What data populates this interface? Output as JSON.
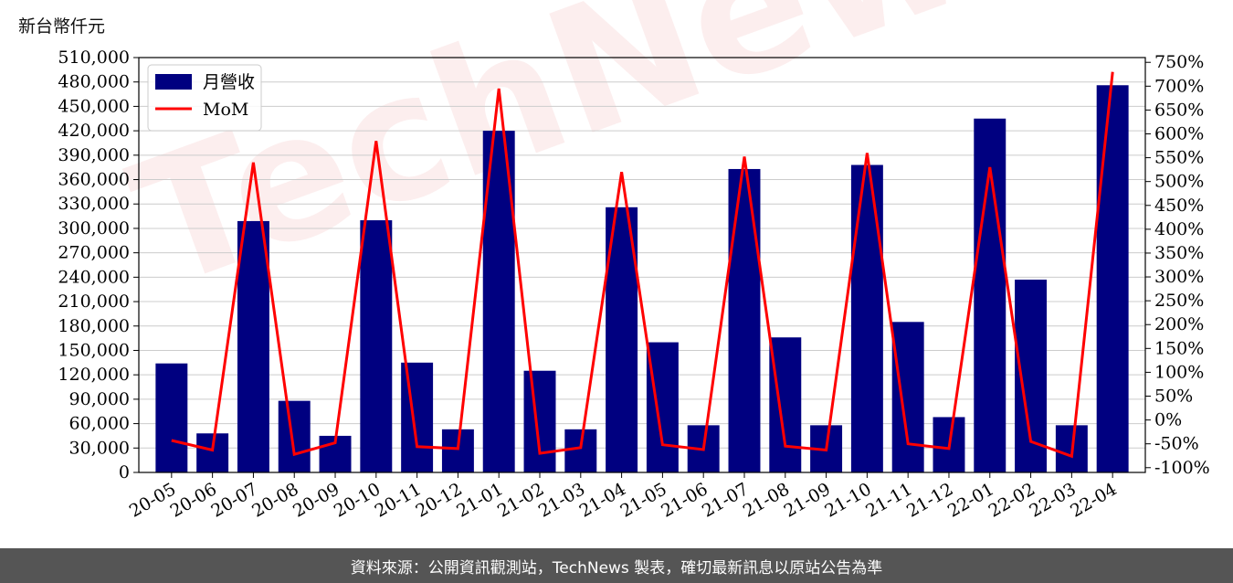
{
  "unit_label": "新台幣仟元",
  "watermark": "TechNews",
  "footer": "資料來源：公開資訊觀測站，TechNews 製表，確切最新訊息以原站公告為準",
  "colors": {
    "bar": "#000080",
    "line": "#ff0000",
    "grid": "#cccccc",
    "axis": "#000000"
  },
  "chart_data": {
    "type": "bar",
    "title": "",
    "xlabel": "",
    "ylabel": "新台幣仟元",
    "categories": [
      "20-05",
      "20-06",
      "20-07",
      "20-08",
      "20-09",
      "20-10",
      "20-11",
      "20-12",
      "21-01",
      "21-02",
      "21-03",
      "21-04",
      "21-05",
      "21-06",
      "21-07",
      "21-08",
      "21-09",
      "21-10",
      "21-11",
      "21-12",
      "22-01",
      "22-02",
      "22-03",
      "22-04"
    ],
    "series": [
      {
        "name": "月營收",
        "type": "bar",
        "axis": "left",
        "values": [
          134000,
          48000,
          309000,
          88000,
          45000,
          310000,
          135000,
          53000,
          420000,
          125000,
          53000,
          326000,
          160000,
          58000,
          373000,
          166000,
          58000,
          378000,
          185000,
          68000,
          435000,
          237000,
          58000,
          476000
        ]
      },
      {
        "name": "MoM",
        "type": "line",
        "axis": "right",
        "values": [
          -43,
          -63,
          540,
          -72,
          -48,
          585,
          -56,
          -60,
          695,
          -70,
          -58,
          520,
          -52,
          -62,
          552,
          -55,
          -63,
          560,
          -50,
          -60,
          530,
          -45,
          -76,
          730
        ]
      }
    ],
    "ylim": [
      0,
      510000
    ],
    "yticks": [
      "0",
      "30,000",
      "60,000",
      "90,000",
      "120,000",
      "150,000",
      "180,000",
      "210,000",
      "240,000",
      "270,000",
      "300,000",
      "330,000",
      "360,000",
      "390,000",
      "420,000",
      "450,000",
      "480,000",
      "510,000"
    ],
    "y2lim": [
      -110,
      760
    ],
    "y2ticks": [
      "-100%",
      "-50%",
      "0%",
      "50%",
      "100%",
      "150%",
      "200%",
      "250%",
      "300%",
      "350%",
      "400%",
      "450%",
      "500%",
      "550%",
      "600%",
      "650%",
      "700%",
      "750%"
    ],
    "grid": true,
    "legend": "top-left"
  }
}
